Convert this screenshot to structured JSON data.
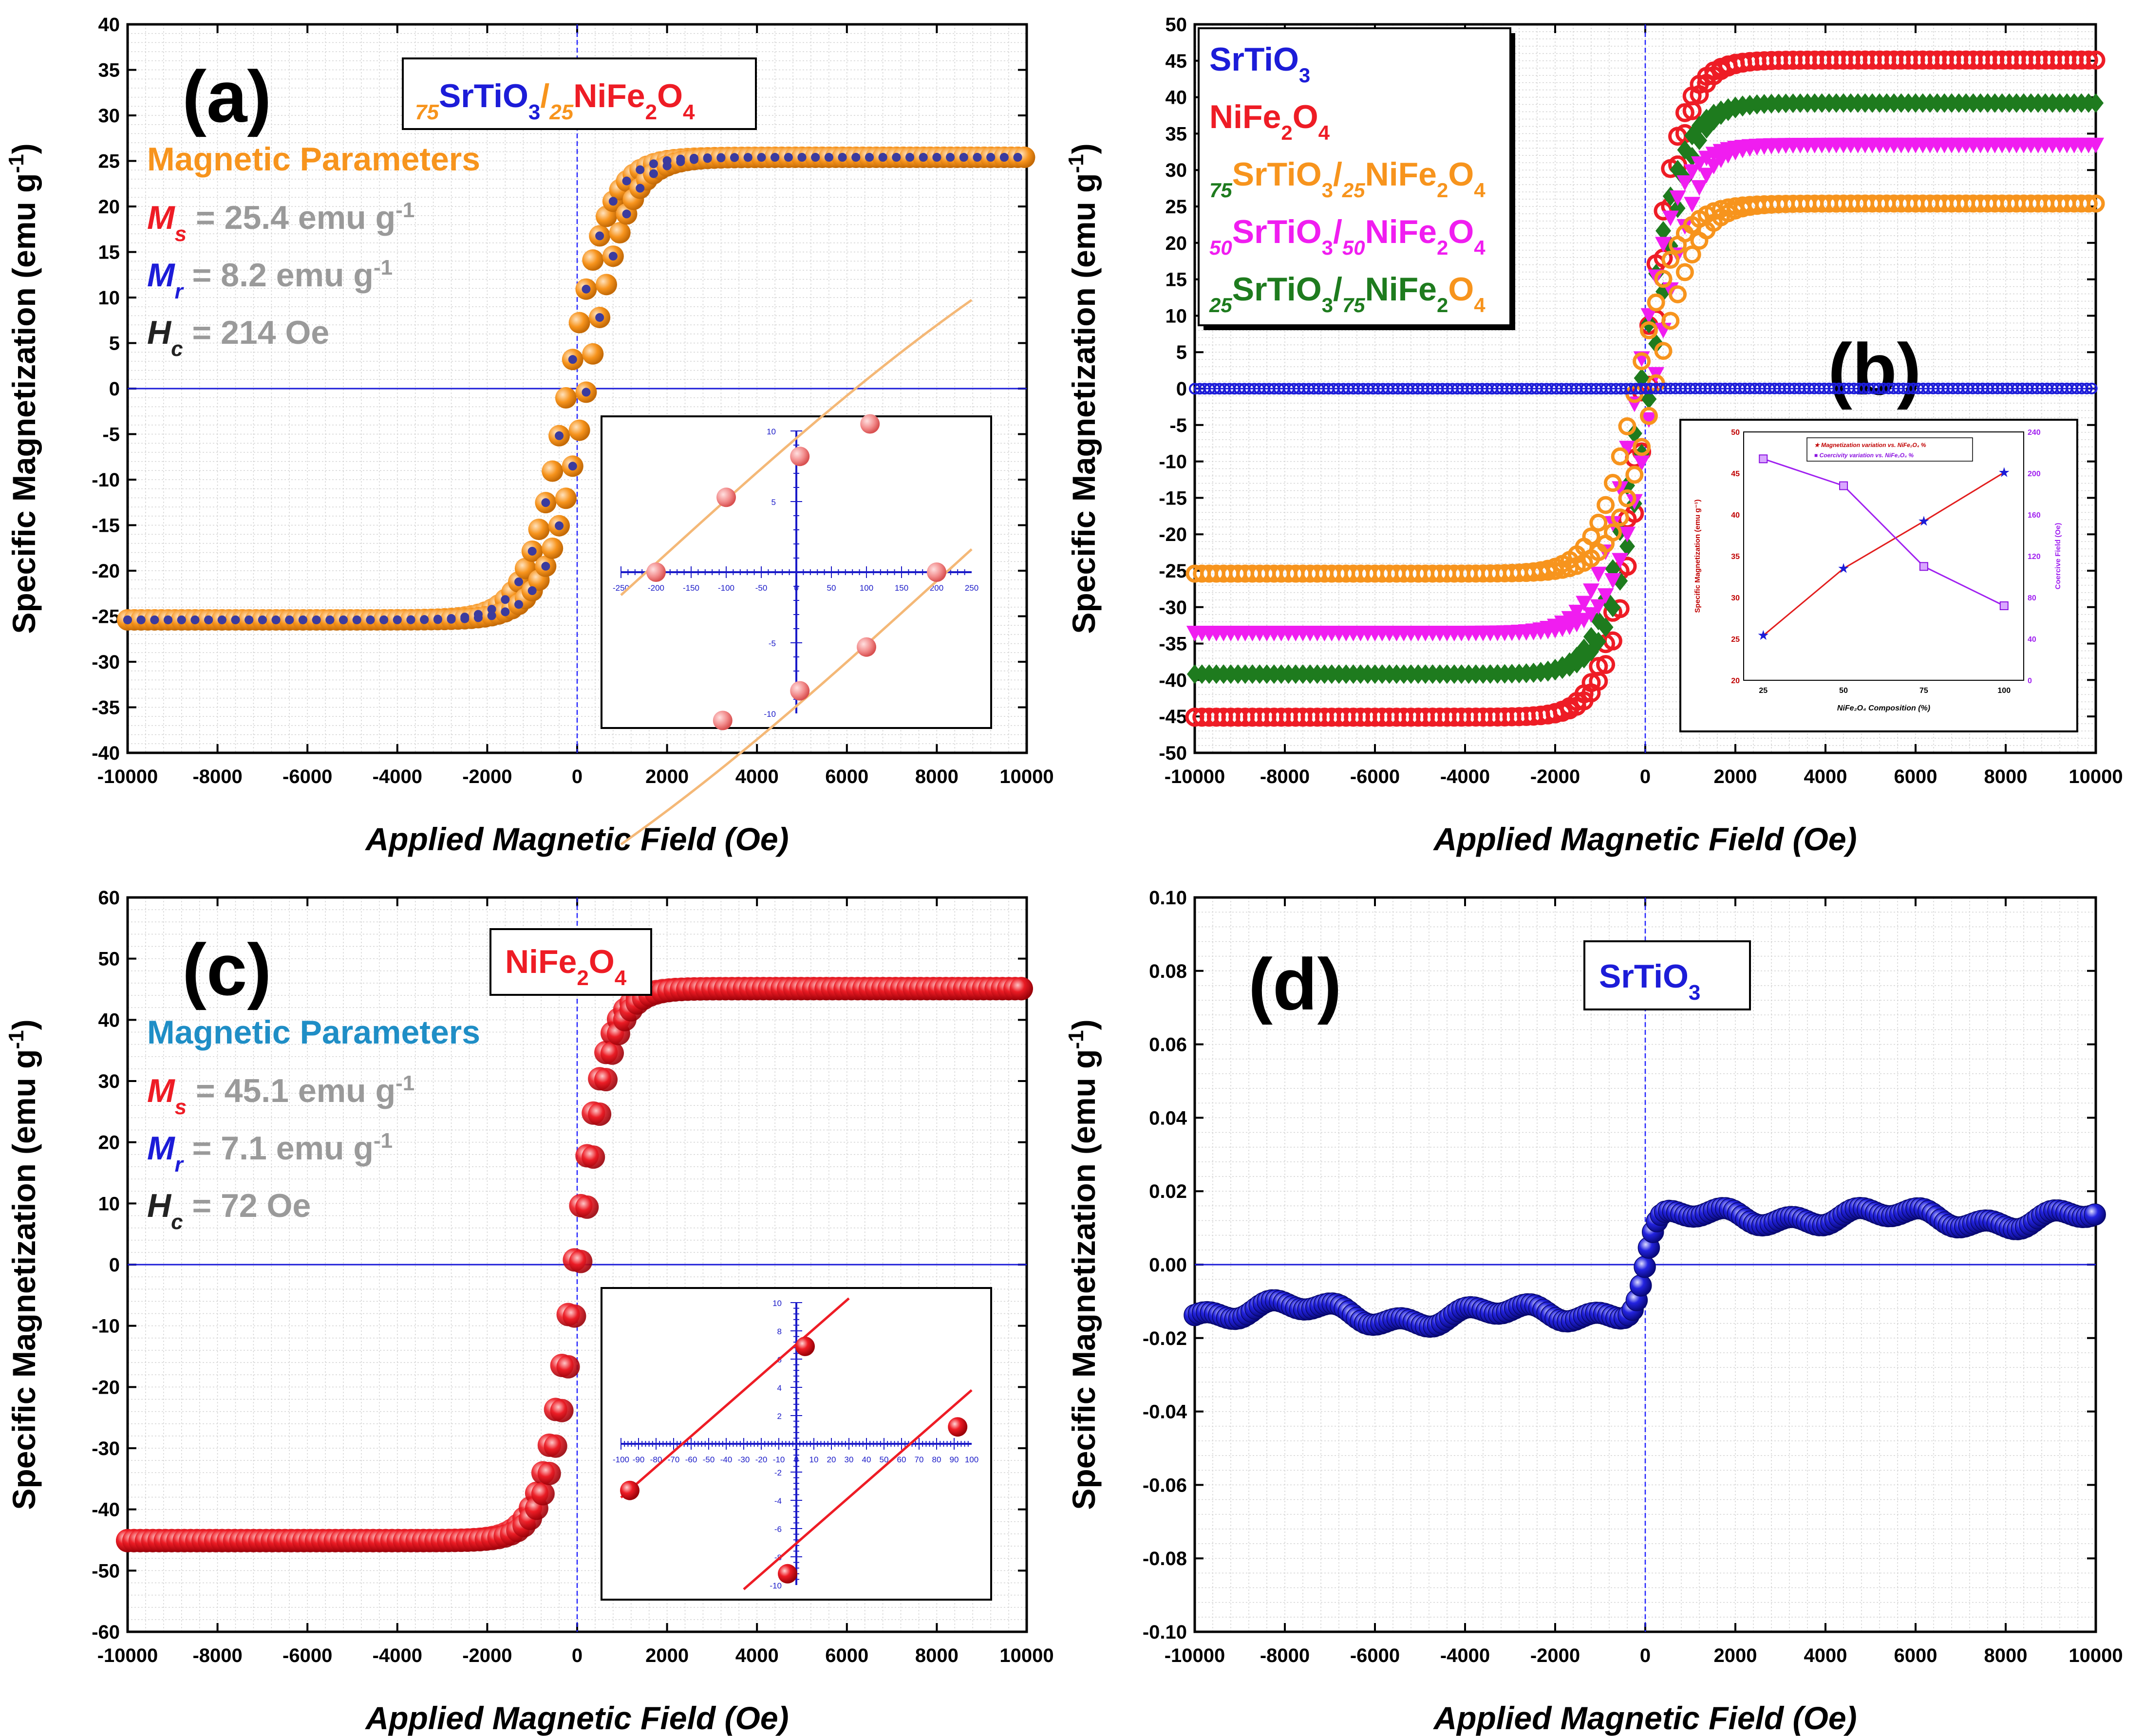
{
  "colors": {
    "orange": "#f7941d",
    "red": "#ee1c25",
    "blue": "#1c1cd8",
    "green": "#1e7b1e",
    "magenta": "#f01df0",
    "gray": "#9a9a9a",
    "teal": "#1f8ec6",
    "dark": "#000000"
  },
  "chart_data": [
    {
      "id": "a",
      "type": "scatter",
      "panel_label": "(a)",
      "title": {
        "pre": "75",
        "a": "SrTiO",
        "a_sub": "3",
        "sep": "/",
        "mid": "25",
        "b": "NiFe",
        "b_sub1": "2",
        "c": "O",
        "b_sub2": "4"
      },
      "xlabel": "Applied Magnetic Field (Oe)",
      "ylabel": "Specific Magnetization (emu g",
      "ylabel_sup": "-1",
      "ylabel_end": ")",
      "xlim": [
        -10000,
        10000
      ],
      "ylim": [
        -40,
        40
      ],
      "xticks": [
        "-10000",
        "-8000",
        "-6000",
        "-4000",
        "-2000",
        "0",
        "2000",
        "4000",
        "6000",
        "8000",
        "10000"
      ],
      "yticks": [
        "-40",
        "-35",
        "-30",
        "-25",
        "-20",
        "-15",
        "-10",
        "-5",
        "0",
        "5",
        "10",
        "15",
        "20",
        "25",
        "30",
        "35",
        "40"
      ],
      "params_title": "Magnetic Parameters",
      "params": [
        {
          "sym": "M",
          "sub": "s",
          "text": "= 25.4 emu g",
          "sup": "-1"
        },
        {
          "sym": "M",
          "sub": "r",
          "text": "= 8.2 emu g",
          "sup": "-1"
        },
        {
          "sym": "H",
          "sub": "c",
          "text": "= 214 Oe",
          "sup": ""
        }
      ],
      "series": [
        {
          "name": "75SrTiO3/25NiFe2O4",
          "Ms": 25.4,
          "Mr": 8.2,
          "Hc": 214
        }
      ],
      "inset": {
        "xticks": [
          "-250",
          "-200",
          "-150",
          "-100",
          "-50",
          "0",
          "50",
          "100",
          "150",
          "200",
          "250"
        ],
        "yticks": [
          "10",
          "5",
          "0",
          "-5",
          "-10"
        ],
        "xlim": [
          -250,
          250
        ],
        "ylim": [
          -10,
          10
        ],
        "points": [
          [
            -200,
            0
          ],
          [
            -100,
            5.3
          ],
          [
            5,
            8.2
          ],
          [
            105,
            10.5
          ],
          [
            200,
            0
          ],
          [
            100,
            -5.3
          ],
          [
            5,
            -8.4
          ],
          [
            -105,
            -10.5
          ]
        ]
      }
    },
    {
      "id": "b",
      "type": "scatter",
      "panel_label": "(b)",
      "xlabel": "Applied Magnetic Field (Oe)",
      "ylabel": "Specific Magnetization (emu g",
      "ylabel_sup": "-1",
      "ylabel_end": ")",
      "xlim": [
        -10000,
        10000
      ],
      "ylim": [
        -50,
        50
      ],
      "xticks": [
        "-10000",
        "-8000",
        "-6000",
        "-4000",
        "-2000",
        "0",
        "2000",
        "4000",
        "6000",
        "8000",
        "10000"
      ],
      "yticks": [
        "-50",
        "-45",
        "-40",
        "-35",
        "-30",
        "-25",
        "-20",
        "-15",
        "-10",
        "-5",
        "0",
        "5",
        "10",
        "15",
        "20",
        "25",
        "30",
        "35",
        "40",
        "45",
        "50"
      ],
      "legend": [
        {
          "name": "SrTiO3",
          "Ms": 0.014
        },
        {
          "name": "NiFe2O4",
          "Ms": 45.1
        },
        {
          "name": "75SrTiO3/25NiFe2O4",
          "Ms": 25.4
        },
        {
          "name": "50SrTiO3/50NiFe2O4",
          "Ms": 33.5
        },
        {
          "name": "25SrTiO3/75NiFe2O4",
          "Ms": 39.2
        }
      ],
      "inset": {
        "xlabel": "NiFe₂O₄ Composition (%)",
        "ylabel_left": "Specific Magnetization (emu g⁻¹)",
        "ylabel_right": "Coercive Field (Oe)",
        "legend": [
          "Magnetization variation vs. NiFe₂O₄ %",
          "Coercivity variation vs. NiFe₂O₄ %"
        ],
        "categories": [
          "25",
          "50",
          "75",
          "100"
        ],
        "magnetization": [
          25.4,
          33.5,
          39.2,
          45.1
        ],
        "coercivity": [
          214,
          188,
          110,
          72
        ],
        "ylim_left": [
          20,
          50
        ],
        "ylim_right": [
          0,
          240
        ],
        "yticks_left": [
          "20",
          "25",
          "30",
          "35",
          "40",
          "45",
          "50"
        ],
        "yticks_right": [
          "0",
          "40",
          "80",
          "120",
          "160",
          "200",
          "240"
        ]
      }
    },
    {
      "id": "c",
      "type": "scatter",
      "panel_label": "(c)",
      "title": "NiFe2O4",
      "xlabel": "Applied Magnetic Field (Oe)",
      "ylabel": "Specific Magnetization (emu g",
      "ylabel_sup": "-1",
      "ylabel_end": ")",
      "xlim": [
        -10000,
        10000
      ],
      "ylim": [
        -60,
        60
      ],
      "xticks": [
        "-10000",
        "-8000",
        "-6000",
        "-4000",
        "-2000",
        "0",
        "2000",
        "4000",
        "6000",
        "8000",
        "10000"
      ],
      "yticks": [
        "-60",
        "-50",
        "-40",
        "-30",
        "-20",
        "-10",
        "0",
        "10",
        "20",
        "30",
        "40",
        "50",
        "60"
      ],
      "params_title": "Magnetic Parameters",
      "params": [
        {
          "sym": "M",
          "sub": "s",
          "text": "= 45.1 emu g",
          "sup": "-1"
        },
        {
          "sym": "M",
          "sub": "r",
          "text": "= 7.1 emu g",
          "sup": "-1"
        },
        {
          "sym": "H",
          "sub": "c",
          "text": "= 72 Oe",
          "sup": ""
        }
      ],
      "series": [
        {
          "name": "NiFe2O4",
          "Ms": 45.1,
          "Mr": 7.1,
          "Hc": 72
        }
      ],
      "inset": {
        "xticks": [
          "-100",
          "-90",
          "-80",
          "-70",
          "-60",
          "-50",
          "-40",
          "-30",
          "-20",
          "-10",
          "0",
          "10",
          "20",
          "30",
          "40",
          "50",
          "60",
          "70",
          "80",
          "90",
          "100"
        ],
        "yticks": [
          "10",
          "8",
          "6",
          "4",
          "2",
          "0",
          "-2",
          "-4",
          "-6",
          "-8",
          "-10"
        ],
        "xlim": [
          -100,
          100
        ],
        "ylim": [
          -10,
          10
        ],
        "points": [
          [
            -95,
            -3.3
          ],
          [
            5,
            6.9
          ],
          [
            92,
            1.2
          ],
          [
            -5,
            -9.2
          ]
        ]
      }
    },
    {
      "id": "d",
      "type": "scatter",
      "panel_label": "(d)",
      "title": "SrTiO3",
      "xlabel": "Applied Magnetic Field (Oe)",
      "ylabel": "Specific Magnetization (emu g",
      "ylabel_sup": "-1",
      "ylabel_end": ")",
      "xlim": [
        -10000,
        10000
      ],
      "ylim": [
        -0.1,
        0.1
      ],
      "xticks": [
        "-10000",
        "-8000",
        "-6000",
        "-4000",
        "-2000",
        "0",
        "2000",
        "4000",
        "6000",
        "8000",
        "10000"
      ],
      "yticks": [
        "-0.10",
        "-0.08",
        "-0.06",
        "-0.04",
        "-0.02",
        "0.00",
        "0.02",
        "0.04",
        "0.06",
        "0.08",
        "0.10"
      ],
      "series": [
        {
          "name": "SrTiO3",
          "Ms": 0.014
        }
      ]
    }
  ]
}
